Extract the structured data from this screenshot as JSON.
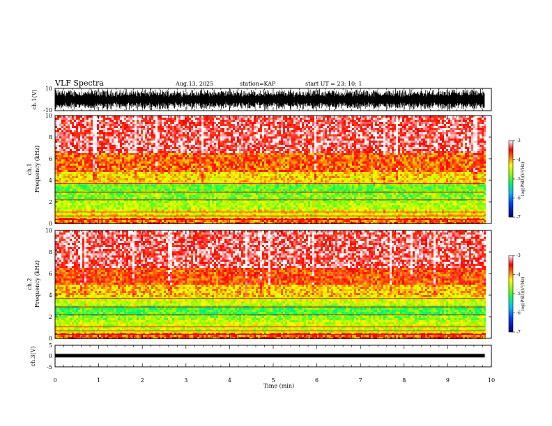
{
  "header": {
    "title": "VLF Spectra",
    "date": "Aug.13, 2025",
    "station": "station=KAP",
    "start": "start  UT =  23: 10: 1"
  },
  "colors": {
    "low": "#000080",
    "mid_low": "#00a0ff",
    "mid": "#00ff00",
    "mid_high": "#ffff00",
    "high": "#ff0000",
    "top": "#ffffff"
  },
  "chart_data": [
    {
      "type": "line",
      "name": "ch1-waveform",
      "ylabel": "ch.1(V)",
      "ylim": [
        -10,
        10
      ],
      "yticks": [
        "10",
        "-10"
      ],
      "xlim": [
        0,
        10
      ],
      "description_level": "broadband noise nearly filling ±10 V"
    },
    {
      "type": "heatmap",
      "name": "ch1-spectrogram",
      "ylabel": "ch.1\nFrequency (kHz)",
      "ylabel_line1": "ch.1",
      "ylabel_line2": "Frequency (kHz)",
      "ylim": [
        0,
        10
      ],
      "yticks": [
        "0",
        "2",
        "4",
        "6",
        "8",
        "10"
      ],
      "xlim": [
        0,
        10
      ],
      "data_end_min": 9.85,
      "bands_khz": [
        {
          "from": 0.0,
          "to": 0.6,
          "level": -3.8
        },
        {
          "from": 0.6,
          "to": 1.2,
          "level": -4.3
        },
        {
          "from": 1.2,
          "to": 2.0,
          "level": -4.6
        },
        {
          "from": 2.0,
          "to": 3.0,
          "level": -4.8
        },
        {
          "from": 3.0,
          "to": 3.7,
          "level": -4.9
        },
        {
          "from": 3.7,
          "to": 4.8,
          "level": -4.2
        },
        {
          "from": 4.8,
          "to": 6.5,
          "level": -3.8
        },
        {
          "from": 6.5,
          "to": 10.0,
          "level": -3.3
        }
      ],
      "colorbar": {
        "label": "log(PSD)(V²/Hz)",
        "range": [
          -7,
          -3
        ],
        "ticks": [
          "-3",
          "-4",
          "-5",
          "-6",
          "-7"
        ]
      }
    },
    {
      "type": "heatmap",
      "name": "ch2-spectrogram",
      "ylabel_line1": "ch.2",
      "ylabel_line2": "Frequency (kHz)",
      "ylim": [
        0,
        10
      ],
      "yticks": [
        "0",
        "2",
        "4",
        "6",
        "8",
        "10"
      ],
      "xlim": [
        0,
        10
      ],
      "data_end_min": 9.85,
      "bands_khz": [
        {
          "from": 0.0,
          "to": 0.6,
          "level": -3.8
        },
        {
          "from": 0.6,
          "to": 1.6,
          "level": -4.5
        },
        {
          "from": 1.6,
          "to": 2.0,
          "level": -4.7
        },
        {
          "from": 2.0,
          "to": 3.0,
          "level": -5.0
        },
        {
          "from": 3.0,
          "to": 3.8,
          "level": -4.5
        },
        {
          "from": 3.8,
          "to": 5.0,
          "level": -4.1
        },
        {
          "from": 5.0,
          "to": 6.5,
          "level": -3.7
        },
        {
          "from": 6.5,
          "to": 10.0,
          "level": -3.3
        }
      ],
      "colorbar": {
        "label": "log(PSD)(V²/Hz)",
        "range": [
          -7,
          -3
        ],
        "ticks": [
          "-3",
          "-4",
          "-5",
          "-6",
          "-7"
        ]
      }
    },
    {
      "type": "line",
      "name": "ch3-waveform",
      "ylabel": "ch.3(V)",
      "ylim": [
        -5,
        5
      ],
      "yticks": [
        "5",
        "0",
        "-5"
      ],
      "xlim": [
        0,
        10
      ],
      "level_v": 0.2,
      "xlabel": "Time (min)",
      "xticks": [
        "0",
        "1",
        "2",
        "3",
        "4",
        "5",
        "6",
        "7",
        "8",
        "9",
        "10"
      ]
    }
  ]
}
